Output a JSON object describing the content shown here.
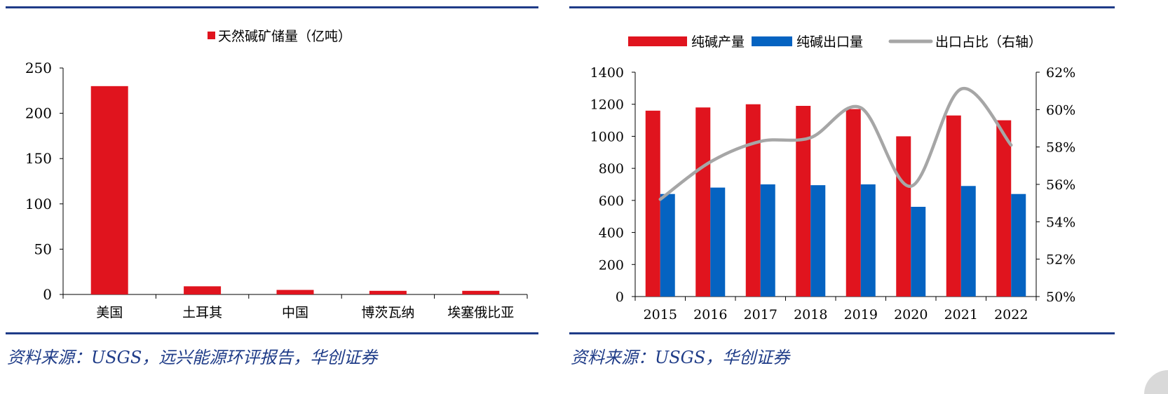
{
  "chart_data": [
    {
      "type": "bar",
      "legend": [
        "天然碱矿储量（亿吨）"
      ],
      "categories": [
        "美国",
        "土耳其",
        "中国",
        "博茨瓦纳",
        "埃塞俄比亚"
      ],
      "series": [
        {
          "name": "天然碱矿储量（亿吨）",
          "values": [
            230,
            9,
            5,
            4,
            4
          ],
          "color": "#e0141e"
        }
      ],
      "ylim": [
        0,
        250
      ],
      "yticks": [
        0,
        50,
        100,
        150,
        200,
        250
      ],
      "legend_position": "top-center"
    },
    {
      "type": "bar",
      "legend": [
        "纯碱产量",
        "纯碱出口量",
        "出口占比（右轴）"
      ],
      "categories": [
        "2015",
        "2016",
        "2017",
        "2018",
        "2019",
        "2020",
        "2021",
        "2022"
      ],
      "series": [
        {
          "name": "纯碱产量",
          "type": "bar",
          "values": [
            1160,
            1180,
            1200,
            1190,
            1170,
            1000,
            1130,
            1100
          ],
          "color": "#e0141e"
        },
        {
          "name": "纯碱出口量",
          "type": "bar",
          "values": [
            640,
            680,
            700,
            695,
            700,
            560,
            690,
            640
          ],
          "color": "#0563c1"
        },
        {
          "name": "出口占比（右轴）",
          "type": "line",
          "axis": "right",
          "values": [
            55.2,
            57.2,
            58.3,
            58.5,
            60.1,
            55.9,
            61.1,
            58.1
          ],
          "color": "#a6a6a6"
        }
      ],
      "ylim": [
        0,
        1400
      ],
      "yticks": [
        0,
        200,
        400,
        600,
        800,
        1000,
        1200,
        1400
      ],
      "y2lim": [
        50,
        62
      ],
      "y2ticks": [
        "50%",
        "52%",
        "54%",
        "56%",
        "58%",
        "60%",
        "62%"
      ],
      "legend_position": "top"
    }
  ],
  "sources": {
    "left": "资料来源：USGS，远兴能源环评报告，华创证券",
    "right": "资料来源：USGS，华创证券"
  },
  "colors": {
    "rule": "#1f3c88",
    "red": "#e0141e",
    "blue": "#0563c1",
    "line": "#a6a6a6"
  }
}
